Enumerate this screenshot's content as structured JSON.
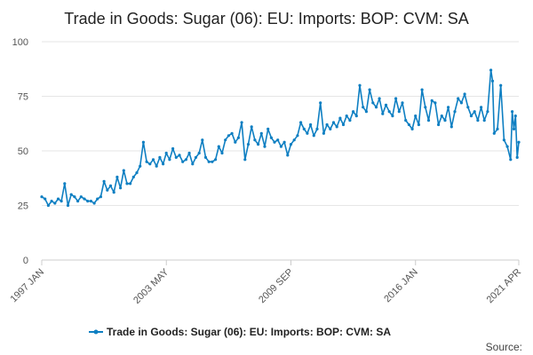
{
  "chart_data": {
    "type": "line",
    "title": "Trade in Goods: Sugar (06): EU: Imports: BOP: CVM: SA",
    "xlabel": "",
    "ylabel": "",
    "x_tick_labels": [
      "1997 JAN",
      "2003 MAY",
      "2009 SEP",
      "2016 JAN",
      "2021 APR"
    ],
    "y_tick_labels": [
      "0",
      "25",
      "50",
      "75",
      "100"
    ],
    "ylim": [
      0,
      100
    ],
    "xlim": [
      "1997-01",
      "2021-04"
    ],
    "grid": "horizontal",
    "legend_position": "bottom",
    "series": [
      {
        "name": "Trade in Goods: Sugar (06): EU: Imports: BOP: CVM: SA",
        "color": "#0e7fc2",
        "points": [
          [
            "1997-01",
            29
          ],
          [
            "1997-03",
            28
          ],
          [
            "1997-05",
            25
          ],
          [
            "1997-07",
            27
          ],
          [
            "1997-09",
            26
          ],
          [
            "1997-11",
            28
          ],
          [
            "1998-01",
            27
          ],
          [
            "1998-03",
            35
          ],
          [
            "1998-05",
            25
          ],
          [
            "1998-07",
            30
          ],
          [
            "1998-09",
            29
          ],
          [
            "1998-11",
            27
          ],
          [
            "1999-01",
            29
          ],
          [
            "1999-03",
            28
          ],
          [
            "1999-05",
            27
          ],
          [
            "1999-07",
            27
          ],
          [
            "1999-09",
            26
          ],
          [
            "1999-11",
            28
          ],
          [
            "2000-01",
            29
          ],
          [
            "2000-03",
            36
          ],
          [
            "2000-05",
            32
          ],
          [
            "2000-07",
            34
          ],
          [
            "2000-09",
            31
          ],
          [
            "2000-11",
            38
          ],
          [
            "2001-01",
            33
          ],
          [
            "2001-03",
            41
          ],
          [
            "2001-05",
            35
          ],
          [
            "2001-07",
            35
          ],
          [
            "2001-09",
            38
          ],
          [
            "2001-11",
            40
          ],
          [
            "2002-01",
            43
          ],
          [
            "2002-03",
            54
          ],
          [
            "2002-05",
            45
          ],
          [
            "2002-07",
            44
          ],
          [
            "2002-09",
            46
          ],
          [
            "2002-11",
            43
          ],
          [
            "2003-01",
            47
          ],
          [
            "2003-03",
            44
          ],
          [
            "2003-05",
            49
          ],
          [
            "2003-07",
            46
          ],
          [
            "2003-09",
            51
          ],
          [
            "2003-11",
            47
          ],
          [
            "2004-01",
            48
          ],
          [
            "2004-03",
            45
          ],
          [
            "2004-05",
            46
          ],
          [
            "2004-07",
            49
          ],
          [
            "2004-09",
            44
          ],
          [
            "2004-11",
            47
          ],
          [
            "2005-01",
            49
          ],
          [
            "2005-03",
            55
          ],
          [
            "2005-05",
            47
          ],
          [
            "2005-07",
            45
          ],
          [
            "2005-09",
            45
          ],
          [
            "2005-11",
            46
          ],
          [
            "2006-01",
            52
          ],
          [
            "2006-03",
            49
          ],
          [
            "2006-05",
            55
          ],
          [
            "2006-07",
            57
          ],
          [
            "2006-09",
            58
          ],
          [
            "2006-11",
            54
          ],
          [
            "2007-01",
            56
          ],
          [
            "2007-03",
            63
          ],
          [
            "2007-05",
            46
          ],
          [
            "2007-07",
            53
          ],
          [
            "2007-09",
            61
          ],
          [
            "2007-11",
            55
          ],
          [
            "2008-01",
            53
          ],
          [
            "2008-03",
            58
          ],
          [
            "2008-05",
            52
          ],
          [
            "2008-07",
            60
          ],
          [
            "2008-09",
            56
          ],
          [
            "2008-11",
            54
          ],
          [
            "2009-01",
            55
          ],
          [
            "2009-03",
            52
          ],
          [
            "2009-05",
            54
          ],
          [
            "2009-07",
            48
          ],
          [
            "2009-09",
            53
          ],
          [
            "2009-11",
            55
          ],
          [
            "2010-01",
            57
          ],
          [
            "2010-03",
            63
          ],
          [
            "2010-05",
            60
          ],
          [
            "2010-07",
            58
          ],
          [
            "2010-09",
            62
          ],
          [
            "2010-11",
            57
          ],
          [
            "2011-01",
            60
          ],
          [
            "2011-03",
            72
          ],
          [
            "2011-05",
            58
          ],
          [
            "2011-07",
            62
          ],
          [
            "2011-09",
            60
          ],
          [
            "2011-11",
            63
          ],
          [
            "2012-01",
            61
          ],
          [
            "2012-03",
            65
          ],
          [
            "2012-05",
            62
          ],
          [
            "2012-07",
            66
          ],
          [
            "2012-09",
            64
          ],
          [
            "2012-11",
            68
          ],
          [
            "2013-01",
            66
          ],
          [
            "2013-03",
            80
          ],
          [
            "2013-05",
            70
          ],
          [
            "2013-07",
            68
          ],
          [
            "2013-09",
            78
          ],
          [
            "2013-11",
            72
          ],
          [
            "2014-01",
            70
          ],
          [
            "2014-03",
            74
          ],
          [
            "2014-05",
            67
          ],
          [
            "2014-07",
            71
          ],
          [
            "2014-09",
            68
          ],
          [
            "2014-11",
            66
          ],
          [
            "2015-01",
            74
          ],
          [
            "2015-03",
            68
          ],
          [
            "2015-05",
            72
          ],
          [
            "2015-07",
            64
          ],
          [
            "2015-09",
            62
          ],
          [
            "2015-11",
            60
          ],
          [
            "2016-01",
            66
          ],
          [
            "2016-03",
            62
          ],
          [
            "2016-05",
            78
          ],
          [
            "2016-07",
            70
          ],
          [
            "2016-09",
            64
          ],
          [
            "2016-11",
            73
          ],
          [
            "2017-01",
            72
          ],
          [
            "2017-03",
            62
          ],
          [
            "2017-05",
            66
          ],
          [
            "2017-07",
            64
          ],
          [
            "2017-09",
            70
          ],
          [
            "2017-11",
            61
          ],
          [
            "2018-01",
            68
          ],
          [
            "2018-03",
            74
          ],
          [
            "2018-05",
            72
          ],
          [
            "2018-07",
            76
          ],
          [
            "2018-09",
            70
          ],
          [
            "2018-11",
            66
          ],
          [
            "2019-01",
            68
          ],
          [
            "2019-03",
            64
          ],
          [
            "2019-05",
            70
          ],
          [
            "2019-07",
            64
          ],
          [
            "2019-09",
            68
          ],
          [
            "2019-11",
            87
          ],
          [
            "2019-12",
            82
          ],
          [
            "2020-01",
            58
          ],
          [
            "2020-03",
            60
          ],
          [
            "2020-05",
            80
          ],
          [
            "2020-07",
            55
          ],
          [
            "2020-09",
            52
          ],
          [
            "2020-11",
            46
          ],
          [
            "2020-12",
            68
          ],
          [
            "2021-01",
            60
          ],
          [
            "2021-02",
            66
          ],
          [
            "2021-03",
            47
          ],
          [
            "2021-04",
            54
          ]
        ]
      }
    ]
  },
  "footer": {
    "source_label": "Source:"
  }
}
